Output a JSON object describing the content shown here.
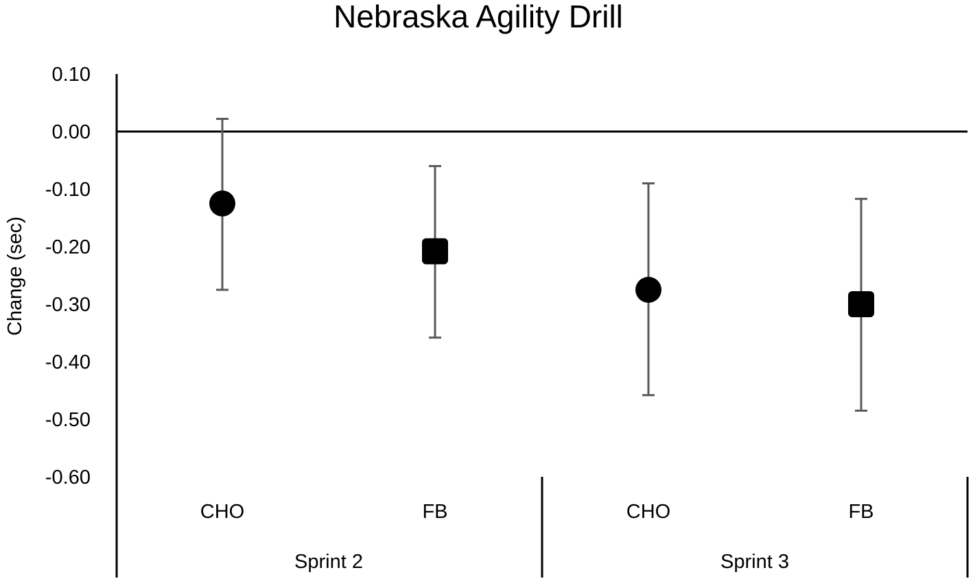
{
  "chart_data": {
    "type": "scatter",
    "title": "Nebraska Agility Drill",
    "ylabel": "Change (sec)",
    "xlabel": "",
    "ylim": [
      -0.6,
      0.1
    ],
    "yticks": [
      "0.10",
      "0.00",
      "-0.10",
      "-0.20",
      "-0.30",
      "-0.40",
      "-0.50",
      "-0.60"
    ],
    "grid": false,
    "legend": "none",
    "groups": [
      "Sprint 2",
      "Sprint 3"
    ],
    "categories": [
      "CHO",
      "FB",
      "CHO",
      "FB"
    ],
    "points": [
      {
        "group": "Sprint 2",
        "category": "CHO",
        "marker": "circle",
        "value": -0.125,
        "error_low": -0.275,
        "error_high": 0.022
      },
      {
        "group": "Sprint 2",
        "category": "FB",
        "marker": "square",
        "value": -0.208,
        "error_low": -0.358,
        "error_high": -0.06
      },
      {
        "group": "Sprint 3",
        "category": "CHO",
        "marker": "circle",
        "value": -0.275,
        "error_low": -0.458,
        "error_high": -0.09
      },
      {
        "group": "Sprint 3",
        "category": "FB",
        "marker": "square",
        "value": -0.3,
        "error_low": -0.485,
        "error_high": -0.117
      }
    ],
    "colors": {
      "marker": "#000000",
      "error_bar": "#595959",
      "axis": "#000000"
    }
  }
}
